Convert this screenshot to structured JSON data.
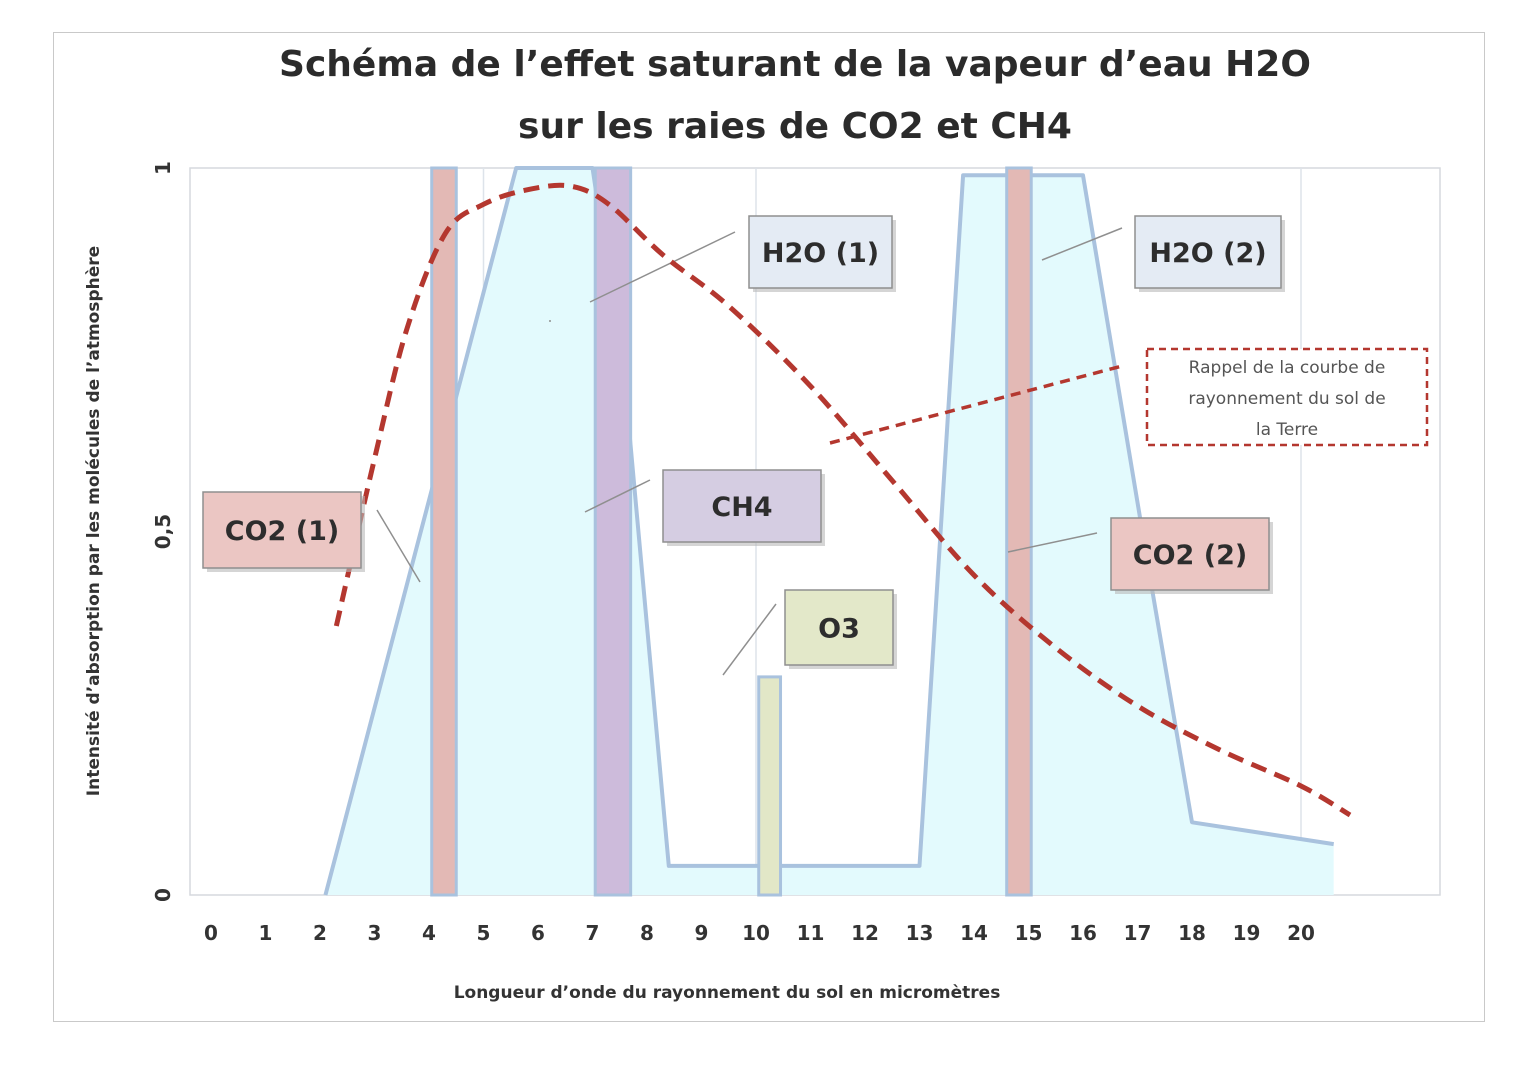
{
  "chart_data": {
    "type": "area",
    "title_lines": [
      "Schéma de l’effet saturant de la vapeur d’eau H2O",
      "sur les raies de CO2 et CH4"
    ],
    "xlabel": "Longueur d’onde du rayonnement du sol en micromètres",
    "ylabel": "Intensité d’absorption par les molécules de l’atmosphère",
    "xlim": [
      0,
      21.3
    ],
    "ylim": [
      0,
      1
    ],
    "x_ticks": [
      "0",
      "1",
      "2",
      "3",
      "4",
      "5",
      "6",
      "7",
      "8",
      "9",
      "10",
      "11",
      "12",
      "13",
      "14",
      "15",
      "16",
      "17",
      "18",
      "19",
      "20"
    ],
    "y_ticks": [
      "0",
      "0,5",
      "1"
    ],
    "grid_x": [
      5,
      10,
      20
    ],
    "h2o_absorption": {
      "x": [
        2.1,
        5.6,
        6.1,
        7.0,
        7.6,
        8.4,
        13.0,
        13.8,
        16.0,
        17.2,
        18.0,
        20.6
      ],
      "y": [
        0.0,
        1.0,
        1.0,
        1.0,
        0.7,
        0.04,
        0.04,
        0.99,
        0.99,
        0.45,
        0.1,
        0.07
      ]
    },
    "earth_emission_curve": {
      "x": [
        2.3,
        3.0,
        3.6,
        4.3,
        5.0,
        5.8,
        6.6,
        7.3,
        8.3,
        9.5,
        11.0,
        12.5,
        14.0,
        15.5,
        17.0,
        18.5,
        20.0,
        20.9
      ],
      "y": [
        0.37,
        0.6,
        0.78,
        0.91,
        0.95,
        0.97,
        0.975,
        0.95,
        0.88,
        0.81,
        0.7,
        0.57,
        0.44,
        0.34,
        0.26,
        0.2,
        0.15,
        0.11
      ]
    },
    "bands": [
      {
        "name": "CO2 (1)",
        "x_start": 4.05,
        "x_end": 4.5,
        "y": 1.0,
        "color": "#e3b9b5"
      },
      {
        "name": "CH4",
        "x_start": 7.05,
        "x_end": 7.7,
        "y": 1.0,
        "color": "#cdbbdb"
      },
      {
        "name": "O3",
        "x_start": 10.05,
        "x_end": 10.45,
        "y": 0.3,
        "color": "#e2e7c7"
      },
      {
        "name": "CO2 (2)",
        "x_start": 14.6,
        "x_end": 15.05,
        "y": 1.0,
        "color": "#e3b9b5"
      }
    ],
    "labels": [
      {
        "id": "h2o1",
        "text": "H2O (1)",
        "fill": "#e4ebf4"
      },
      {
        "id": "h2o2",
        "text": "H2O (2)",
        "fill": "#e4ebf4"
      },
      {
        "id": "co2a",
        "text": "CO2 (1)",
        "fill": "#ebc6c3"
      },
      {
        "id": "ch4",
        "text": "CH4",
        "fill": "#d5cde2"
      },
      {
        "id": "co2b",
        "text": "CO2 (2)",
        "fill": "#ebc6c3"
      },
      {
        "id": "o3",
        "text": "O3",
        "fill": "#e3e8c9"
      }
    ],
    "callout": {
      "lines": [
        "Rappel de la courbe de",
        "rayonnement du sol de",
        "la Terre"
      ]
    },
    "colors": {
      "h2o_fill": "#e3fafd",
      "h2o_line": "#a9c2de",
      "curve": "#b4372f",
      "grid": "#dde3ea"
    }
  }
}
